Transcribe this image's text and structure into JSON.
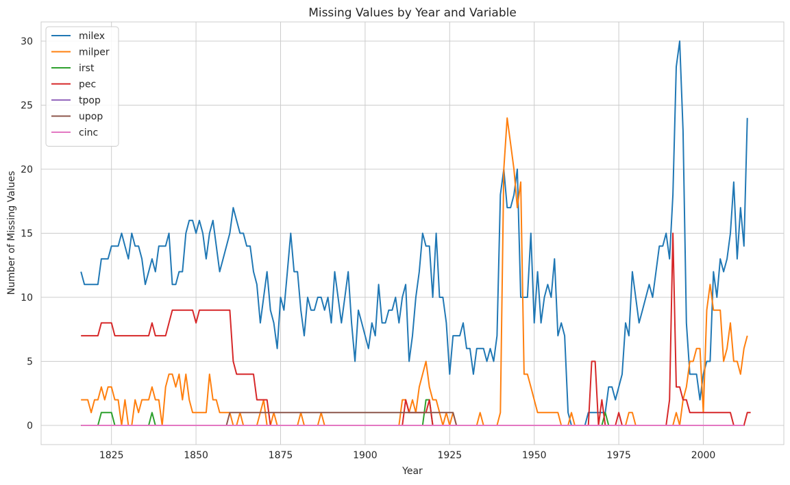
{
  "chart_data": {
    "type": "line",
    "title": "Missing Values by Year and Variable",
    "xlabel": "Year",
    "ylabel": "Number of Missing Values",
    "xlim": [
      1804.2,
      2023.8
    ],
    "ylim": [
      -1.5,
      31.5
    ],
    "xticks": [
      1825,
      1850,
      1875,
      1900,
      1925,
      1950,
      1975,
      2000
    ],
    "yticks": [
      0,
      5,
      10,
      15,
      20,
      25,
      30
    ],
    "grid": true,
    "legend_position": "upper left",
    "x_start": 1816,
    "series": [
      {
        "name": "milex",
        "color": "#1f77b4",
        "values": [
          12,
          11,
          11,
          11,
          11,
          11,
          13,
          13,
          13,
          14,
          14,
          14,
          15,
          14,
          13,
          15,
          14,
          14,
          13,
          11,
          12,
          13,
          12,
          14,
          14,
          14,
          15,
          11,
          11,
          12,
          12,
          15,
          16,
          16,
          15,
          16,
          15,
          13,
          15,
          16,
          14,
          12,
          13,
          14,
          15,
          17,
          16,
          15,
          15,
          14,
          14,
          12,
          11,
          8,
          10,
          12,
          9,
          8,
          6,
          10,
          9,
          12,
          15,
          12,
          12,
          9,
          7,
          10,
          9,
          9,
          10,
          10,
          9,
          10,
          8,
          12,
          10,
          8,
          10,
          12,
          8,
          5,
          9,
          8,
          7,
          6,
          8,
          7,
          11,
          8,
          8,
          9,
          9,
          10,
          8,
          10,
          11,
          5,
          7,
          10,
          12,
          15,
          14,
          14,
          10,
          15,
          10,
          10,
          8,
          4,
          7,
          7,
          7,
          8,
          6,
          6,
          4,
          6,
          6,
          6,
          5,
          6,
          5,
          7,
          18,
          20,
          17,
          17,
          18,
          20,
          10,
          10,
          10,
          15,
          8,
          12,
          8,
          10,
          11,
          10,
          13,
          7,
          8,
          7,
          1,
          0,
          0,
          0,
          0,
          0,
          1,
          1,
          1,
          1,
          1,
          1,
          3,
          3,
          2,
          3,
          4,
          8,
          7,
          12,
          10,
          8,
          9,
          10,
          11,
          10,
          12,
          14,
          14,
          15,
          13,
          18,
          28,
          30,
          23,
          8,
          4,
          4,
          4,
          2,
          4,
          5,
          5,
          12,
          10,
          13,
          12,
          13,
          15,
          19,
          13,
          17,
          14,
          24
        ]
      },
      {
        "name": "milper",
        "color": "#ff7f0e",
        "values": [
          2,
          2,
          2,
          1,
          2,
          2,
          3,
          2,
          3,
          3,
          2,
          2,
          0,
          2,
          0,
          0,
          2,
          1,
          2,
          2,
          2,
          3,
          2,
          2,
          0,
          3,
          4,
          4,
          3,
          4,
          2,
          4,
          2,
          1,
          1,
          1,
          1,
          1,
          4,
          2,
          2,
          1,
          1,
          1,
          1,
          0,
          0,
          1,
          0,
          0,
          0,
          0,
          0,
          1,
          2,
          0,
          0,
          1,
          0,
          0,
          0,
          0,
          0,
          0,
          0,
          1,
          0,
          0,
          0,
          0,
          0,
          1,
          0,
          0,
          0,
          0,
          0,
          0,
          0,
          0,
          0,
          0,
          0,
          0,
          0,
          0,
          0,
          0,
          0,
          0,
          0,
          0,
          0,
          0,
          0,
          2,
          2,
          1,
          2,
          1,
          3,
          4,
          5,
          3,
          2,
          2,
          1,
          0,
          1,
          0,
          1,
          0,
          0,
          0,
          0,
          0,
          0,
          0,
          1,
          0,
          0,
          0,
          0,
          0,
          1,
          20,
          24,
          22,
          20,
          17,
          19,
          4,
          4,
          3,
          2,
          1,
          1,
          1,
          1,
          1,
          1,
          1,
          0,
          0,
          0,
          1,
          0,
          0,
          0,
          0,
          0,
          0,
          0,
          0,
          0,
          0,
          0,
          0,
          0,
          0,
          0,
          0,
          1,
          1,
          0,
          0,
          0,
          0,
          0,
          0,
          0,
          0,
          0,
          0,
          0,
          0,
          1,
          0,
          2,
          3,
          5,
          5,
          6,
          6,
          1,
          9,
          11,
          9,
          9,
          9,
          5,
          6,
          8,
          5,
          5,
          4,
          6,
          7
        ]
      },
      {
        "name": "irst",
        "color": "#2ca02c",
        "values": [
          0,
          0,
          0,
          0,
          0,
          0,
          1,
          1,
          1,
          1,
          0,
          0,
          0,
          0,
          0,
          0,
          0,
          0,
          0,
          0,
          0,
          1,
          0,
          0,
          0,
          0,
          0,
          0,
          0,
          0,
          0,
          0,
          0,
          0,
          0,
          0,
          0,
          0,
          0,
          0,
          0,
          0,
          0,
          0,
          0,
          0,
          0,
          0,
          0,
          0,
          0,
          0,
          0,
          0,
          0,
          0,
          0,
          0,
          0,
          0,
          0,
          0,
          0,
          0,
          0,
          0,
          0,
          0,
          0,
          0,
          0,
          0,
          0,
          0,
          0,
          0,
          0,
          0,
          0,
          0,
          0,
          0,
          0,
          0,
          0,
          0,
          0,
          0,
          0,
          0,
          0,
          0,
          0,
          0,
          0,
          0,
          0,
          0,
          0,
          0,
          0,
          0,
          2,
          2,
          0,
          0,
          0,
          0,
          0,
          0,
          0,
          0,
          0,
          0,
          0,
          0,
          0,
          0,
          0,
          0,
          0,
          0,
          0,
          0,
          0,
          0,
          0,
          0,
          0,
          0,
          0,
          0,
          0,
          0,
          0,
          0,
          0,
          0,
          0,
          0,
          0,
          0,
          0,
          0,
          0,
          0,
          0,
          0,
          0,
          0,
          0,
          0,
          0,
          0,
          0,
          1,
          0,
          0,
          0,
          0,
          0,
          0,
          0,
          0,
          0,
          0,
          0,
          0,
          0,
          0,
          0,
          0,
          0,
          0,
          0,
          0,
          0,
          0,
          0,
          0,
          0,
          0,
          0,
          0,
          0,
          0,
          0,
          0,
          0,
          0,
          0,
          0,
          0,
          0,
          0,
          0,
          0
        ]
      },
      {
        "name": "pec",
        "color": "#d62728",
        "values": [
          7,
          7,
          7,
          7,
          7,
          7,
          8,
          8,
          8,
          8,
          7,
          7,
          7,
          7,
          7,
          7,
          7,
          7,
          7,
          7,
          7,
          8,
          7,
          7,
          7,
          7,
          8,
          9,
          9,
          9,
          9,
          9,
          9,
          9,
          8,
          9,
          9,
          9,
          9,
          9,
          9,
          9,
          9,
          9,
          9,
          5,
          4,
          4,
          4,
          4,
          4,
          4,
          2,
          2,
          2,
          2,
          0,
          0,
          0,
          0,
          0,
          0,
          0,
          0,
          0,
          0,
          0,
          0,
          0,
          0,
          0,
          0,
          0,
          0,
          0,
          0,
          0,
          0,
          0,
          0,
          0,
          0,
          0,
          0,
          0,
          0,
          0,
          0,
          0,
          0,
          0,
          0,
          0,
          0,
          0,
          0,
          2,
          1,
          1,
          1,
          1,
          1,
          1,
          2,
          0,
          0,
          0,
          0,
          0,
          0,
          0,
          0,
          0,
          0,
          0,
          0,
          0,
          0,
          0,
          0,
          0,
          0,
          0,
          0,
          0,
          0,
          0,
          0,
          0,
          0,
          0,
          0,
          0,
          0,
          0,
          0,
          0,
          0,
          0,
          0,
          0,
          0,
          0,
          0,
          0,
          0,
          0,
          0,
          0,
          0,
          0,
          5,
          5,
          0,
          2,
          0,
          0,
          0,
          0,
          1,
          0,
          0,
          0,
          0,
          0,
          0,
          0,
          0,
          0,
          0,
          0,
          0,
          0,
          0,
          2,
          15,
          3,
          3,
          2,
          2,
          1,
          1,
          1,
          1,
          1,
          1,
          1,
          1,
          1,
          1,
          1,
          1,
          1,
          0,
          0,
          0,
          0,
          1,
          1
        ]
      },
      {
        "name": "tpop",
        "color": "#9467bd",
        "values": [
          0,
          0,
          0,
          0,
          0,
          0,
          0,
          0,
          0,
          0,
          0,
          0,
          0,
          0,
          0,
          0,
          0,
          0,
          0,
          0,
          0,
          0,
          0,
          0,
          0,
          0,
          0,
          0,
          0,
          0,
          0,
          0,
          0,
          0,
          0,
          0,
          0,
          0,
          0,
          0,
          0,
          0,
          0,
          0,
          0,
          0,
          0,
          0,
          0,
          0,
          0,
          0,
          0,
          0,
          0,
          0,
          0,
          0,
          0,
          0,
          0,
          0,
          0,
          0,
          0,
          0,
          0,
          0,
          0,
          0,
          0,
          0,
          0,
          0,
          0,
          0,
          0,
          0,
          0,
          0,
          0,
          0,
          0,
          0,
          0,
          0,
          0,
          0,
          0,
          0,
          0,
          0,
          0,
          0,
          0,
          0,
          0,
          0,
          0,
          0,
          0,
          0,
          0,
          0,
          0,
          0,
          0,
          0,
          0,
          0,
          0,
          0,
          0,
          0,
          0,
          0,
          0,
          0,
          0,
          0,
          0,
          0,
          0,
          0,
          0,
          0,
          0,
          0,
          0,
          0,
          0,
          0,
          0,
          0,
          0,
          0,
          0,
          0,
          0,
          0,
          0,
          0,
          0,
          0,
          0,
          0,
          0,
          0,
          0,
          0,
          0,
          0,
          0,
          0,
          0,
          0,
          0,
          0,
          0,
          0,
          0,
          0,
          0,
          0,
          0,
          0,
          0,
          0,
          0,
          0,
          0,
          0,
          0,
          0,
          0,
          0,
          0,
          0,
          0,
          0,
          0,
          0,
          0,
          0,
          0,
          0,
          0,
          0,
          0,
          0,
          0,
          0,
          0,
          0,
          0,
          0,
          0
        ]
      },
      {
        "name": "upop",
        "color": "#8c564b",
        "values": [
          0,
          0,
          0,
          0,
          0,
          0,
          0,
          0,
          0,
          0,
          0,
          0,
          0,
          0,
          0,
          0,
          0,
          0,
          0,
          0,
          0,
          0,
          0,
          0,
          0,
          0,
          0,
          0,
          0,
          0,
          0,
          0,
          0,
          0,
          0,
          0,
          0,
          0,
          0,
          0,
          0,
          0,
          0,
          0,
          1,
          1,
          1,
          1,
          1,
          1,
          1,
          1,
          1,
          1,
          1,
          1,
          1,
          1,
          1,
          1,
          1,
          1,
          1,
          1,
          1,
          1,
          1,
          1,
          1,
          1,
          1,
          1,
          1,
          1,
          1,
          1,
          1,
          1,
          1,
          1,
          1,
          1,
          1,
          1,
          1,
          1,
          1,
          1,
          1,
          1,
          1,
          1,
          1,
          1,
          1,
          1,
          1,
          1,
          1,
          1,
          1,
          1,
          1,
          1,
          1,
          1,
          1,
          1,
          1,
          1,
          1,
          0,
          0,
          0,
          0,
          0,
          0,
          0,
          0,
          0,
          0,
          0,
          0,
          0,
          0,
          0,
          0,
          0,
          0,
          0,
          0,
          0,
          0,
          0,
          0,
          0,
          0,
          0,
          0,
          0,
          0,
          0,
          0,
          0,
          0,
          0,
          0,
          0,
          0,
          0,
          0,
          0,
          0,
          0,
          0,
          0,
          0,
          0,
          0,
          0,
          0,
          0,
          0,
          0,
          0,
          0,
          0,
          0,
          0,
          0,
          0,
          0,
          0,
          0,
          0,
          0,
          0,
          0,
          0,
          0,
          0,
          0,
          0,
          0,
          0,
          0,
          0,
          0,
          0,
          0,
          0,
          0,
          0
        ]
      },
      {
        "name": "cinc",
        "color": "#e377c2",
        "values": [
          0,
          0,
          0,
          0,
          0,
          0,
          0,
          0,
          0,
          0,
          0,
          0,
          0,
          0,
          0,
          0,
          0,
          0,
          0,
          0,
          0,
          0,
          0,
          0,
          0,
          0,
          0,
          0,
          0,
          0,
          0,
          0,
          0,
          0,
          0,
          0,
          0,
          0,
          0,
          0,
          0,
          0,
          0,
          0,
          0,
          0,
          0,
          0,
          0,
          0,
          0,
          0,
          0,
          0,
          0,
          0,
          0,
          0,
          0,
          0,
          0,
          0,
          0,
          0,
          0,
          0,
          0,
          0,
          0,
          0,
          0,
          0,
          0,
          0,
          0,
          0,
          0,
          0,
          0,
          0,
          0,
          0,
          0,
          0,
          0,
          0,
          0,
          0,
          0,
          0,
          0,
          0,
          0,
          0,
          0,
          0,
          0,
          0,
          0,
          0,
          0,
          0,
          0,
          0,
          0,
          0,
          0,
          0,
          0,
          0,
          0,
          0,
          0,
          0,
          0,
          0,
          0,
          0,
          0,
          0,
          0,
          0,
          0,
          0,
          0,
          0,
          0,
          0,
          0,
          0,
          0,
          0,
          0,
          0,
          0,
          0,
          0,
          0,
          0,
          0,
          0,
          0,
          0,
          0,
          0,
          0,
          0,
          0,
          0,
          0,
          0,
          0,
          0,
          0,
          0,
          0,
          0,
          0,
          0,
          0,
          0,
          0,
          0,
          0,
          0,
          0,
          0,
          0,
          0,
          0,
          0,
          0,
          0,
          0,
          0,
          0,
          0,
          0,
          0,
          0,
          0,
          0,
          0,
          0,
          0,
          0,
          0,
          0,
          0,
          0,
          0,
          0,
          0,
          0,
          0,
          0,
          0
        ]
      }
    ]
  }
}
